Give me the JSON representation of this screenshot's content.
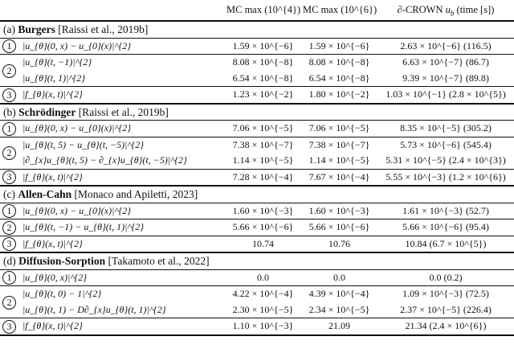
{
  "header": {
    "col0": "",
    "col1": "MC max (10^{4})",
    "col2": "MC max (10^{6})",
    "col3": "∂-CROWN u_{b} (time [s])"
  },
  "sections": [
    {
      "prefix": "(a)",
      "name": "Burgers",
      "citation": "[Raissi et al., 2019b]",
      "groups": [
        {
          "marker": "1",
          "rows": [
            [
              "|u_{θ}(0, x) − u_{0}(x)|^{2}",
              "1.59 × 10^{−6}",
              "1.59 × 10^{−6}",
              "2.63 × 10^{−6} (116.5)"
            ]
          ]
        },
        {
          "marker": "2",
          "rows": [
            [
              "|u_{θ}(t, −1)|^{2}",
              "8.08 × 10^{−8}",
              "8.08 × 10^{−8}",
              "6.63 × 10^{−7} (86.7)"
            ],
            [
              "|u_{θ}(t, 1)|^{2}",
              "6.54 × 10^{−8}",
              "6.54 × 10^{−8}",
              "9.39 × 10^{−7} (89.8)"
            ]
          ]
        },
        {
          "marker": "3",
          "rows": [
            [
              "|f_{θ}(x, t)|^{2}",
              "1.23 × 10^{−2}",
              "1.80 × 10^{−2}",
              "1.03 × 10^{−1} (2.8 × 10^{5})"
            ]
          ]
        }
      ]
    },
    {
      "prefix": "(b)",
      "name": "Schrödinger",
      "citation": "[Raissi et al., 2019b]",
      "groups": [
        {
          "marker": "1",
          "rows": [
            [
              "|u_{θ}(0, x) − u_{0}(x)|^{2}",
              "7.06 × 10^{−5}",
              "7.06 × 10^{−5}",
              "8.35 × 10^{−5} (305.2)"
            ]
          ]
        },
        {
          "marker": "2",
          "rows": [
            [
              "|u_{θ}(t, 5) − u_{θ}(t, −5)|^{2}",
              "7.38 × 10^{−7}",
              "7.38 × 10^{−7}",
              "5.73 × 10^{−6} (545.4)"
            ],
            [
              "|∂_{x}u_{θ}(t, 5) − ∂_{x}u_{θ}(t, −5)|^{2}",
              "1.14 × 10^{−5}",
              "1.14 × 10^{−5}",
              "5.31 × 10^{−5} (2.4 × 10^{3})"
            ]
          ]
        },
        {
          "marker": "3",
          "rows": [
            [
              "|f_{θ}(x, t)|^{2}",
              "7.28 × 10^{−4}",
              "7.67 × 10^{−4}",
              "5.55 × 10^{−3} (1.2 × 10^{6})"
            ]
          ]
        }
      ]
    },
    {
      "prefix": "(c)",
      "name": "Allen-Cahn",
      "citation": "[Monaco and Apiletti, 2023]",
      "groups": [
        {
          "marker": "1",
          "rows": [
            [
              "|u_{θ}(0, x) − u_{0}(x)|^{2}",
              "1.60 × 10^{−3}",
              "1.60 × 10^{−3}",
              "1.61 × 10^{−3} (52.7)"
            ]
          ]
        },
        {
          "marker": "2",
          "rows": [
            [
              "|u_{θ}(t, −1) − u_{θ}(t, 1)|^{2}",
              "5.66 × 10^{−6}",
              "5.66 × 10^{−6}",
              "5.66 × 10^{−6} (95.4)"
            ]
          ]
        },
        {
          "marker": "3",
          "rows": [
            [
              "|f_{θ}(x, t)|^{2}",
              "10.74",
              "10.76",
              "10.84 (6.7 × 10^{5})"
            ]
          ]
        }
      ]
    },
    {
      "prefix": "(d)",
      "name": "Diffusion-Sorption",
      "citation": "[Takamoto et al., 2022]",
      "groups": [
        {
          "marker": "1",
          "rows": [
            [
              "|u_{θ}(0, x)|^{2}",
              "0.0",
              "0.0",
              "0.0 (0.2)"
            ]
          ]
        },
        {
          "marker": "2",
          "rows": [
            [
              "|u_{θ}(t, 0) − 1|^{2}",
              "4.22 × 10^{−4}",
              "4.39 × 10^{−4}",
              "1.09 × 10^{−3} (72.5)"
            ],
            [
              "|u_{θ}(t, 1) − D∂_{x}u_{θ}(t, 1)|^{2}",
              "2.30 × 10^{−5}",
              "2.34 × 10^{−5}",
              "2.37 × 10^{−5} (226.4)"
            ]
          ]
        },
        {
          "marker": "3",
          "rows": [
            [
              "|f_{θ}(x, t)|^{2}",
              "1.10 × 10^{−3}",
              "21.09",
              "21.34 (2.4 × 10^{6})"
            ]
          ]
        }
      ]
    }
  ]
}
